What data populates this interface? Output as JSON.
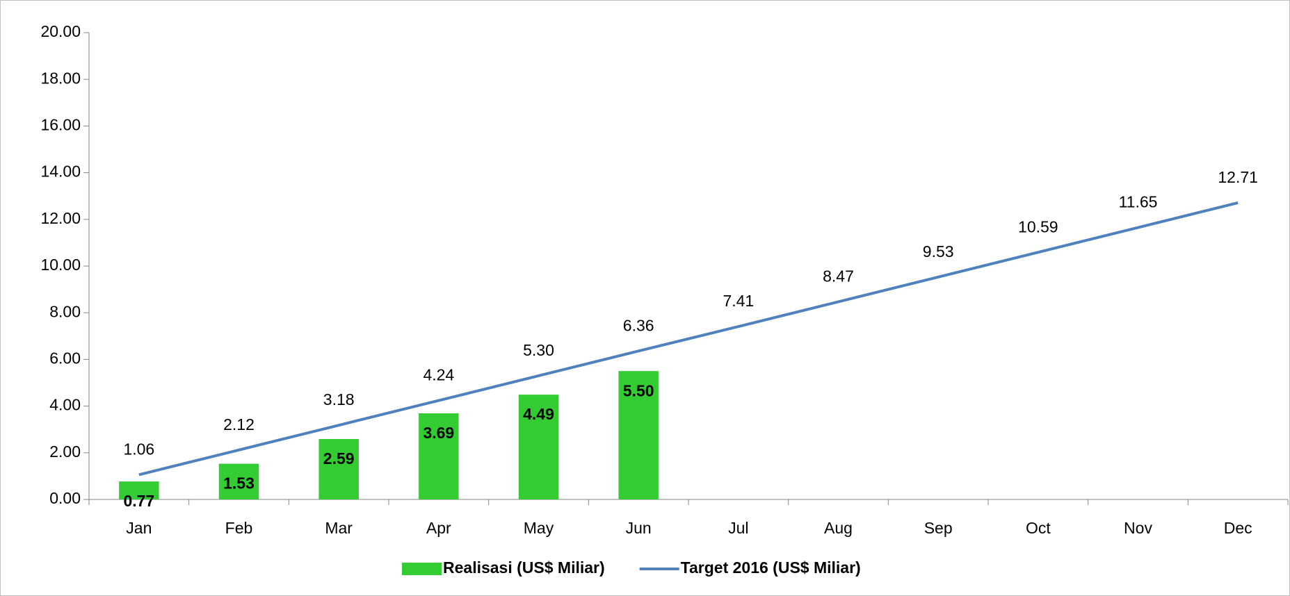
{
  "chart_data": {
    "type": "combo",
    "categories": [
      "Jan",
      "Feb",
      "Mar",
      "Apr",
      "May",
      "Jun",
      "Jul",
      "Aug",
      "Sep",
      "Oct",
      "Nov",
      "Dec"
    ],
    "series": [
      {
        "name": "Realisasi (US$ Miliar)",
        "type": "bar",
        "color": "#33cc33",
        "values": [
          0.77,
          1.53,
          2.59,
          3.69,
          4.49,
          5.5,
          null,
          null,
          null,
          null,
          null,
          null
        ],
        "value_labels": [
          "0.77",
          "1.53",
          "2.59",
          "3.69",
          "4.49",
          "5.50",
          null,
          null,
          null,
          null,
          null,
          null
        ]
      },
      {
        "name": "Target 2016 (US$ Miliar)",
        "type": "line",
        "color": "#4f81bd",
        "values": [
          1.06,
          2.12,
          3.18,
          4.24,
          5.3,
          6.36,
          7.41,
          8.47,
          9.53,
          10.59,
          11.65,
          12.71
        ],
        "value_labels": [
          "1.06",
          "2.12",
          "3.18",
          "4.24",
          "5.30",
          "6.36",
          "7.41",
          "8.47",
          "9.53",
          "10.59",
          "11.65",
          "12.71"
        ]
      }
    ],
    "ylim": [
      0,
      20
    ],
    "yticks": [
      {
        "value": 0,
        "label": "0.00"
      },
      {
        "value": 2,
        "label": "2.00"
      },
      {
        "value": 4,
        "label": "4.00"
      },
      {
        "value": 6,
        "label": "6.00"
      },
      {
        "value": 8,
        "label": "8.00"
      },
      {
        "value": 10,
        "label": "10.00"
      },
      {
        "value": 12,
        "label": "12.00"
      },
      {
        "value": 14,
        "label": "14.00"
      },
      {
        "value": 16,
        "label": "16.00"
      },
      {
        "value": 18,
        "label": "18.00"
      },
      {
        "value": 20,
        "label": "20.00"
      }
    ],
    "grid": false,
    "legend": "bottom"
  }
}
